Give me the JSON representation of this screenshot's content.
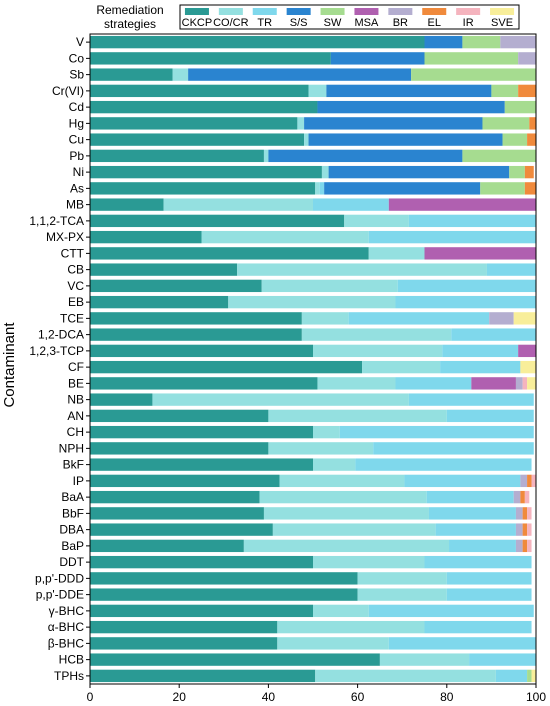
{
  "chart_data": {
    "type": "bar",
    "orientation": "horizontal",
    "stacked": true,
    "xlabel": "",
    "ylabel": "Contaminant",
    "xlim": [
      0,
      100
    ],
    "x_ticks": [
      "0",
      "20",
      "40",
      "60",
      "80",
      "100"
    ],
    "grid": false,
    "legend": {
      "title": "Remediation strategies",
      "placement": "top",
      "columns": 10
    },
    "categories": [
      "V",
      "Co",
      "Sb",
      "Cr(VI)",
      "Cd",
      "Hg",
      "Cu",
      "Pb",
      "Ni",
      "As",
      "MB",
      "1,1,2-TCA",
      "MX-PX",
      "CTT",
      "CB",
      "VC",
      "EB",
      "TCE",
      "1,2-DCA",
      "1,2,3-TCP",
      "CF",
      "BE",
      "NB",
      "AN",
      "CH",
      "NPH",
      "BkF",
      "IP",
      "BaA",
      "BbF",
      "DBA",
      "BaP",
      "DDT",
      "p,p'-DDD",
      "p,p'-DDE",
      "γ-BHC",
      "α-BHC",
      "β-BHC",
      "HCB",
      "TPHs"
    ],
    "series": [
      {
        "name": "CKCP",
        "color": "#2a9a94",
        "values": [
          75,
          54,
          18.5,
          49,
          51,
          46.5,
          48,
          39,
          52,
          50.5,
          16.5,
          57,
          25,
          62.5,
          33,
          38.5,
          31,
          47.5,
          47.5,
          50,
          61,
          51,
          14,
          40,
          50,
          40,
          50,
          42.5,
          38,
          39,
          41,
          34.5,
          50,
          60,
          60,
          50,
          42,
          42,
          65,
          50.5
        ]
      },
      {
        "name": "CO/CR",
        "color": "#94e0e0",
        "values": [
          0,
          0,
          3.5,
          4,
          0,
          1.5,
          1,
          1,
          1.5,
          1,
          33.5,
          14.5,
          37.5,
          12.5,
          56,
          30.5,
          37.5,
          10.5,
          33.5,
          29,
          17.5,
          17.5,
          57.5,
          40,
          6,
          23.5,
          9.5,
          28,
          37.5,
          37,
          36.5,
          46,
          25,
          20,
          20,
          12.5,
          33,
          25,
          20,
          40.5
        ]
      },
      {
        "name": "TR",
        "color": "#7fd8ec",
        "values": [
          0,
          0,
          0,
          0,
          0,
          0,
          0,
          0,
          0,
          1,
          17,
          28.5,
          37.5,
          0,
          11,
          31,
          31.5,
          31.5,
          19,
          17,
          18,
          17,
          28,
          19.5,
          43.5,
          36,
          39.5,
          26,
          19.5,
          19.5,
          18,
          15,
          24,
          19,
          19,
          37,
          24,
          33,
          15,
          7
        ]
      },
      {
        "name": "S/S",
        "color": "#2a84d0",
        "values": [
          8.5,
          21,
          50,
          37,
          42,
          40,
          43.5,
          43.5,
          40.5,
          35,
          0,
          0,
          0,
          0,
          0,
          0,
          0,
          0,
          0,
          0,
          0,
          0,
          0,
          0,
          0,
          0,
          0,
          0,
          0,
          0,
          0,
          0,
          0,
          0,
          0,
          0,
          0,
          0,
          0,
          0
        ]
      },
      {
        "name": "SW",
        "color": "#a6dc90",
        "values": [
          8.5,
          21,
          28,
          6,
          7,
          10.5,
          5.5,
          16.5,
          3.5,
          10,
          0,
          0,
          0,
          0,
          0,
          0,
          0,
          0,
          0,
          0,
          0,
          0,
          0,
          0,
          0,
          0,
          0,
          0,
          0,
          0,
          0,
          0,
          0,
          0,
          0,
          0,
          0,
          0,
          0,
          1
        ]
      },
      {
        "name": "MSA",
        "color": "#b060b0",
        "values": [
          0,
          0,
          0,
          0,
          0,
          0,
          0,
          0,
          0,
          0,
          33,
          0,
          0,
          25,
          0,
          0,
          0,
          0,
          0,
          4,
          0,
          10,
          0,
          0,
          0,
          0,
          0,
          0,
          0,
          0,
          0,
          0,
          0,
          0,
          0,
          0,
          0,
          0,
          0,
          0
        ]
      },
      {
        "name": "BR",
        "color": "#b4aed0",
        "values": [
          8,
          4,
          0,
          0,
          0,
          0,
          0,
          0,
          0,
          0,
          0,
          0,
          0,
          0,
          0,
          0,
          0,
          5.5,
          0,
          0,
          0,
          1.5,
          0,
          0,
          0,
          0,
          0,
          1.5,
          1.5,
          1.5,
          1.5,
          1.5,
          0,
          0,
          0,
          0,
          0,
          0,
          0,
          0
        ]
      },
      {
        "name": "EL",
        "color": "#f08a3c",
        "values": [
          0,
          0,
          0,
          4,
          0,
          1.5,
          2,
          0,
          2,
          2.5,
          0,
          0,
          0,
          0,
          0,
          0,
          0,
          0,
          0,
          0,
          0,
          0,
          0,
          0,
          0,
          0,
          0,
          1,
          1,
          1,
          1,
          1,
          0,
          0,
          0,
          0,
          0,
          0,
          0,
          0
        ]
      },
      {
        "name": "IR",
        "color": "#f5b4be",
        "values": [
          0,
          0,
          0,
          0,
          0,
          0,
          0,
          0,
          0,
          0,
          0,
          0,
          0,
          0,
          0,
          0,
          0,
          0,
          0,
          0,
          0,
          1,
          0,
          0,
          0,
          0,
          0,
          1,
          1,
          1,
          1,
          1,
          0,
          0,
          0,
          0,
          0,
          0,
          0,
          0
        ]
      },
      {
        "name": "SVE",
        "color": "#f8ee9a",
        "values": [
          0,
          0,
          0,
          0,
          0,
          0,
          0,
          0,
          0,
          0,
          0,
          0,
          0,
          0,
          0,
          0,
          0,
          5,
          0,
          0,
          3.5,
          2,
          0,
          0,
          0,
          0,
          0,
          0,
          0,
          0,
          0,
          0,
          0,
          0,
          0,
          0,
          0,
          0,
          0,
          1
        ]
      }
    ]
  }
}
